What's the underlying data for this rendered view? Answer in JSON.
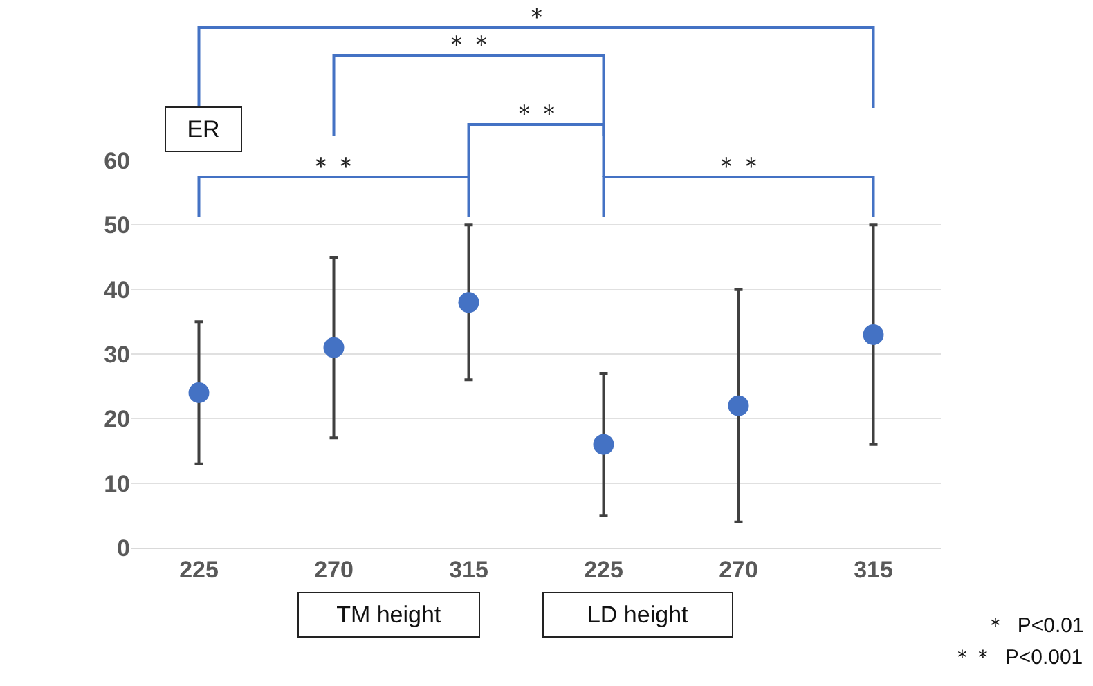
{
  "chart_data": {
    "type": "scatter",
    "ylabel": "ER",
    "categories": [
      "225",
      "270",
      "315",
      "225",
      "270",
      "315"
    ],
    "values": [
      24,
      31,
      38,
      16,
      22,
      33
    ],
    "errors": [
      [
        13,
        35
      ],
      [
        17,
        45
      ],
      [
        26,
        50
      ],
      [
        5,
        27
      ],
      [
        4,
        40
      ],
      [
        16,
        50
      ]
    ],
    "color": "#4472c4",
    "marker": "circle",
    "ylim": [
      0,
      60
    ],
    "yticks": [
      0,
      10,
      20,
      30,
      40,
      50,
      60
    ],
    "grid": "y",
    "annotations": [
      "＊",
      "＊＊",
      "＊＊",
      "＊＊",
      "＊＊",
      "TM height",
      "LD height",
      "＊  P<0.01",
      "＊＊  P<0.001"
    ]
  }
}
